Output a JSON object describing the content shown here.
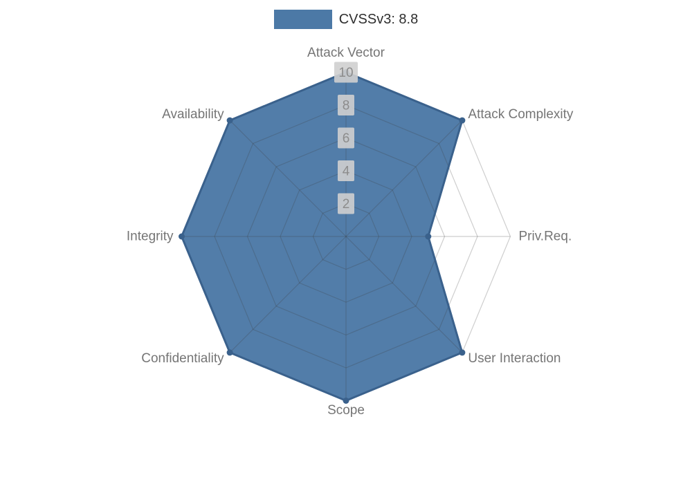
{
  "chart_data": {
    "type": "radar",
    "title": "CVSSv3: 8.8",
    "legend_label": "CVSSv3: 8.8",
    "legend_position": "top",
    "categories": [
      "Attack Vector",
      "Attack Complexity",
      "Priv.Req.",
      "User Interaction",
      "Scope",
      "Confidentiality",
      "Integrity",
      "Availability"
    ],
    "series": [
      {
        "name": "CVSSv3: 8.8",
        "values": [
          10,
          10,
          5,
          10,
          10,
          10,
          10,
          10
        ]
      }
    ],
    "ticks": [
      2,
      4,
      6,
      8,
      10
    ],
    "rmin": 0,
    "rmax": 10,
    "grid": "octagonal rings with 8 radial spokes",
    "markers": true,
    "colors": {
      "fill": "#4c79a6",
      "border": "#3a618c",
      "marker": "#3a618c",
      "grid_line": "rgba(60,60,60,0.25)",
      "axis_label": "#757575",
      "tick_label": "#8c8c8c",
      "tick_backdrop": "#cfcfcf",
      "legend_text": "#2e2e2e",
      "background": "#ffffff"
    }
  }
}
